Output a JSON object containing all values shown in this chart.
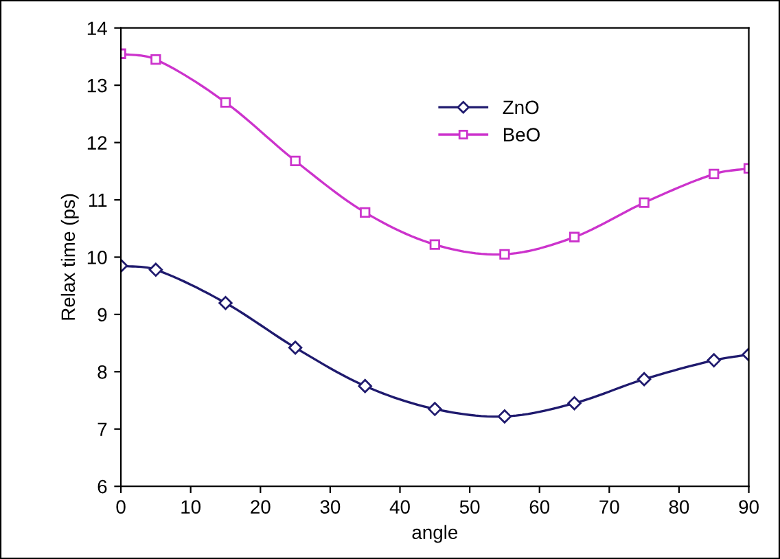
{
  "chart_data": {
    "type": "line",
    "xlabel": "angle",
    "ylabel": "Relax time (ps)",
    "x": [
      0,
      5,
      15,
      25,
      35,
      45,
      55,
      65,
      75,
      85,
      90
    ],
    "series": [
      {
        "name": "ZnO",
        "color": "#1f1a6e",
        "marker": "diamond",
        "values": [
          9.85,
          9.78,
          9.2,
          8.42,
          7.75,
          7.35,
          7.22,
          7.45,
          7.87,
          8.2,
          8.3
        ]
      },
      {
        "name": "BeO",
        "color": "#cc33cc",
        "marker": "square",
        "values": [
          13.55,
          13.45,
          12.7,
          11.68,
          10.78,
          10.22,
          10.05,
          10.35,
          10.95,
          11.45,
          11.55
        ]
      }
    ],
    "xlim": [
      0,
      90
    ],
    "xticks": [
      0,
      10,
      20,
      30,
      40,
      50,
      60,
      70,
      80,
      90
    ],
    "ylim": [
      6,
      14
    ],
    "yticks": [
      6,
      7,
      8,
      9,
      10,
      11,
      12,
      13,
      14
    ],
    "grid": false,
    "legend": "top center",
    "line_style": "solid"
  }
}
